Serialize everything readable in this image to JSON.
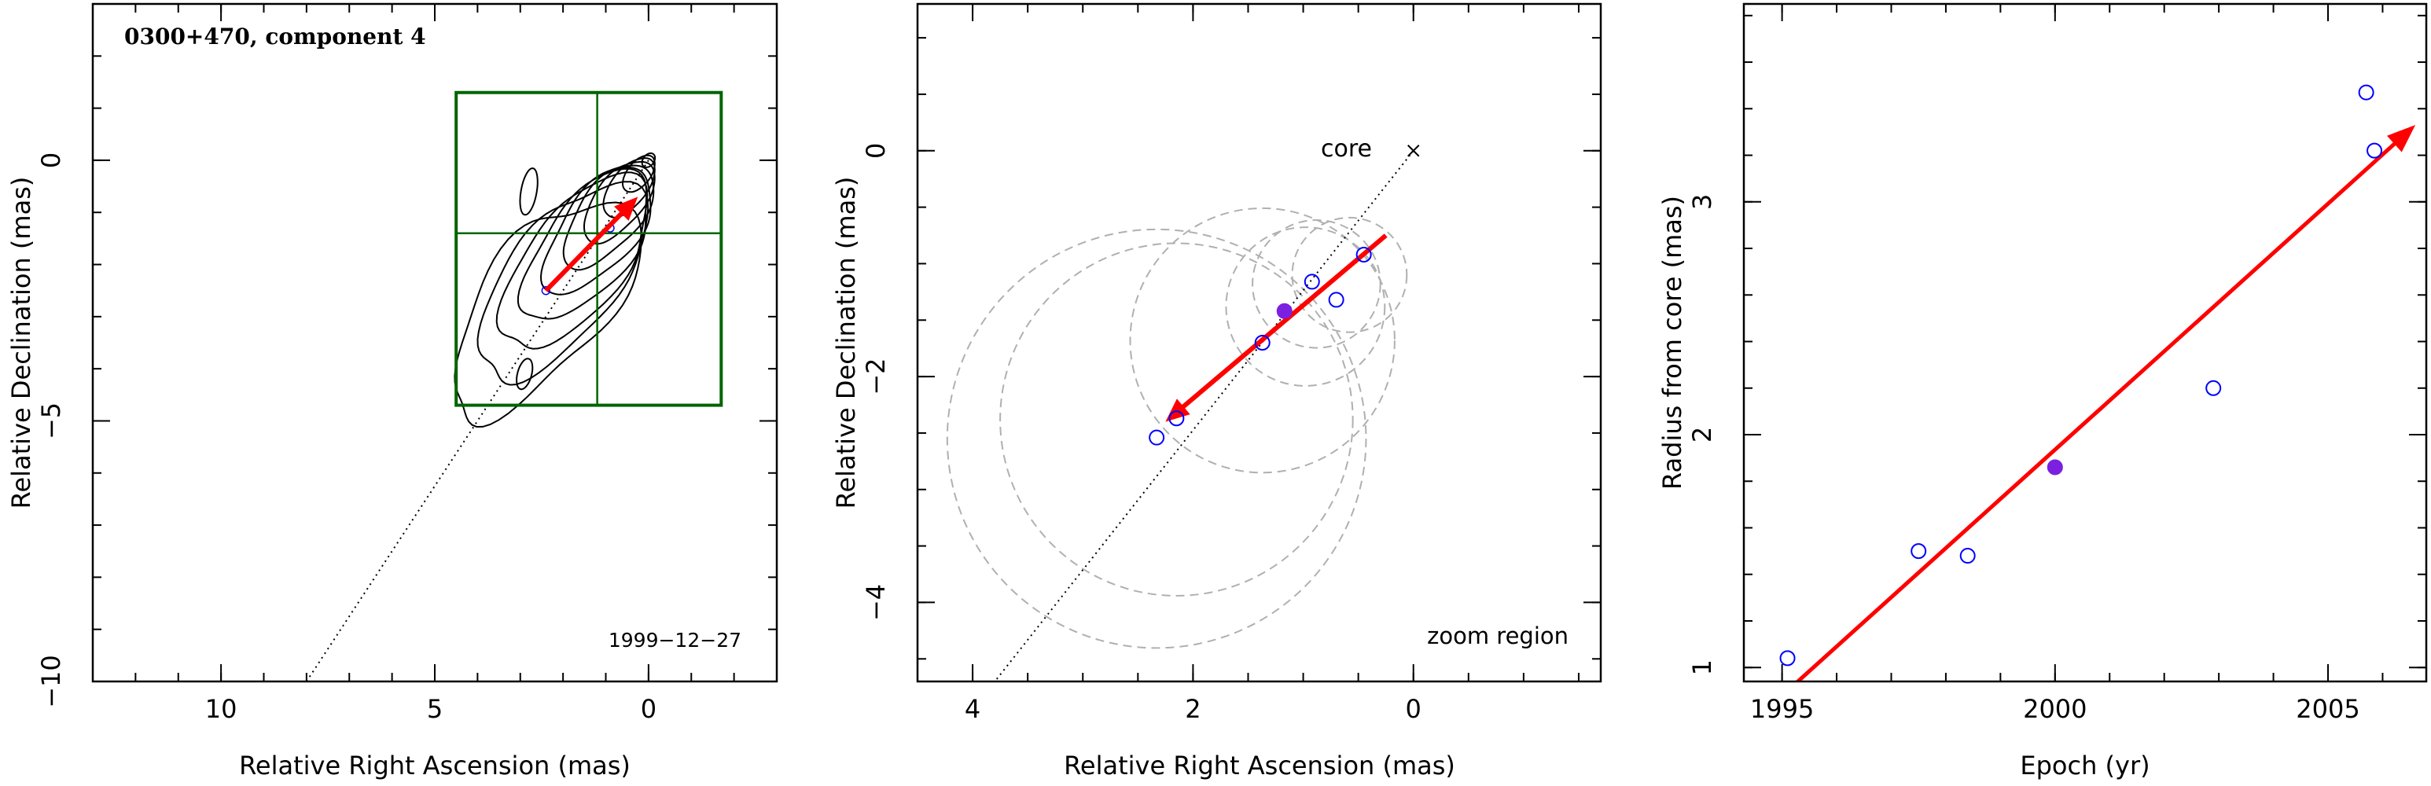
{
  "chart_data": [
    {
      "type": "contour",
      "title": "0300+470, component 4",
      "epoch_label": "1999−12−27",
      "xlabel": "Relative Right Ascension (mas)",
      "ylabel": "Relative Declination (mas)",
      "xlim": [
        13.0,
        -3.0
      ],
      "ylim": [
        -10.0,
        3.0
      ],
      "x_ticks": [
        10,
        5,
        0
      ],
      "y_ticks": [
        0,
        -5,
        -10
      ],
      "x_tick_labels": [
        "10",
        "5",
        "0"
      ],
      "y_tick_labels": [
        "0",
        "−5",
        "−10"
      ],
      "contour_levels": 10,
      "core_position": [
        0.0,
        0.0
      ],
      "zoom_box": {
        "x_range": [
          4.5,
          -1.7
        ],
        "y_range": [
          1.3,
          -4.7
        ],
        "cross": [
          1.2,
          -1.4
        ]
      },
      "trajectory_line": {
        "from": [
          0.0,
          0.0
        ],
        "to": [
          8.0,
          -10.0
        ]
      },
      "component_points": [
        [
          0.9,
          -1.3
        ],
        [
          2.4,
          -2.5
        ]
      ],
      "motion_vector": {
        "from": [
          2.4,
          -2.5
        ],
        "to": [
          0.25,
          -0.7
        ],
        "color": "#ff0000"
      },
      "frame_color": "#006400"
    },
    {
      "type": "scatter",
      "annotation_core": "core",
      "annotation_zoom": "zoom region",
      "xlabel": "Relative Right Ascension (mas)",
      "ylabel": "Relative Declination (mas)",
      "xlim": [
        4.5,
        -1.7
      ],
      "ylim": [
        -4.7,
        1.3
      ],
      "x_ticks": [
        4,
        2,
        0
      ],
      "y_ticks": [
        0,
        -2,
        -4
      ],
      "x_tick_labels": [
        "4",
        "2",
        "0"
      ],
      "y_tick_labels": [
        "0",
        "−2",
        "−4"
      ],
      "core_position": [
        0.0,
        0.0
      ],
      "trajectory_line": {
        "from": [
          0.0,
          0.0
        ],
        "to": [
          4.0,
          -4.95
        ]
      },
      "points": [
        {
          "x": 0.45,
          "y": -0.92,
          "filled": false
        },
        {
          "x": 0.7,
          "y": -1.32,
          "filled": false
        },
        {
          "x": 0.92,
          "y": -1.16,
          "filled": false
        },
        {
          "x": 1.17,
          "y": -1.42,
          "filled": true
        },
        {
          "x": 1.37,
          "y": -1.7,
          "filled": false
        },
        {
          "x": 2.15,
          "y": -2.37,
          "filled": false
        },
        {
          "x": 2.33,
          "y": -2.54,
          "filled": false
        }
      ],
      "uncertainty_circles": [
        {
          "cx": 0.58,
          "cy": -1.1,
          "r": 0.52
        },
        {
          "cx": 0.88,
          "cy": -1.18,
          "r": 0.58
        },
        {
          "cx": 0.98,
          "cy": -1.38,
          "r": 0.72
        },
        {
          "cx": 1.37,
          "cy": -1.68,
          "r": 1.2
        },
        {
          "cx": 2.15,
          "cy": -2.38,
          "r": 1.6
        },
        {
          "cx": 2.33,
          "cy": -2.55,
          "r": 1.9
        }
      ],
      "motion_vector": {
        "from": [
          0.25,
          -0.75
        ],
        "to": [
          2.25,
          -2.4
        ],
        "color": "#ff0000"
      },
      "point_color": "#0000ff",
      "filled_point_color": "#7b1fe0"
    },
    {
      "type": "scatter",
      "xlabel": "Epoch (yr)",
      "ylabel": "Radius from core (mas)",
      "xlim": [
        1994.3,
        2006.8
      ],
      "ylim": [
        0.94,
        3.85
      ],
      "x_ticks": [
        1995,
        2000,
        2005
      ],
      "y_ticks": [
        1,
        2,
        3
      ],
      "x_tick_labels": [
        "1995",
        "2000",
        "2005"
      ],
      "y_tick_labels": [
        "1",
        "2",
        "3"
      ],
      "points": [
        {
          "x": 1995.1,
          "y": 1.04,
          "filled": false
        },
        {
          "x": 1997.5,
          "y": 1.5,
          "filled": false
        },
        {
          "x": 1998.4,
          "y": 1.48,
          "filled": false
        },
        {
          "x": 2000.0,
          "y": 1.86,
          "filled": true
        },
        {
          "x": 2002.9,
          "y": 2.2,
          "filled": false
        },
        {
          "x": 2005.7,
          "y": 3.47,
          "filled": false
        },
        {
          "x": 2005.85,
          "y": 3.22,
          "filled": false
        }
      ],
      "fit_line": {
        "from": [
          1995.1,
          0.9
        ],
        "to": [
          2006.6,
          3.33
        ],
        "color": "#ff0000"
      },
      "point_color": "#0000ff",
      "filled_point_color": "#7b1fe0"
    }
  ]
}
